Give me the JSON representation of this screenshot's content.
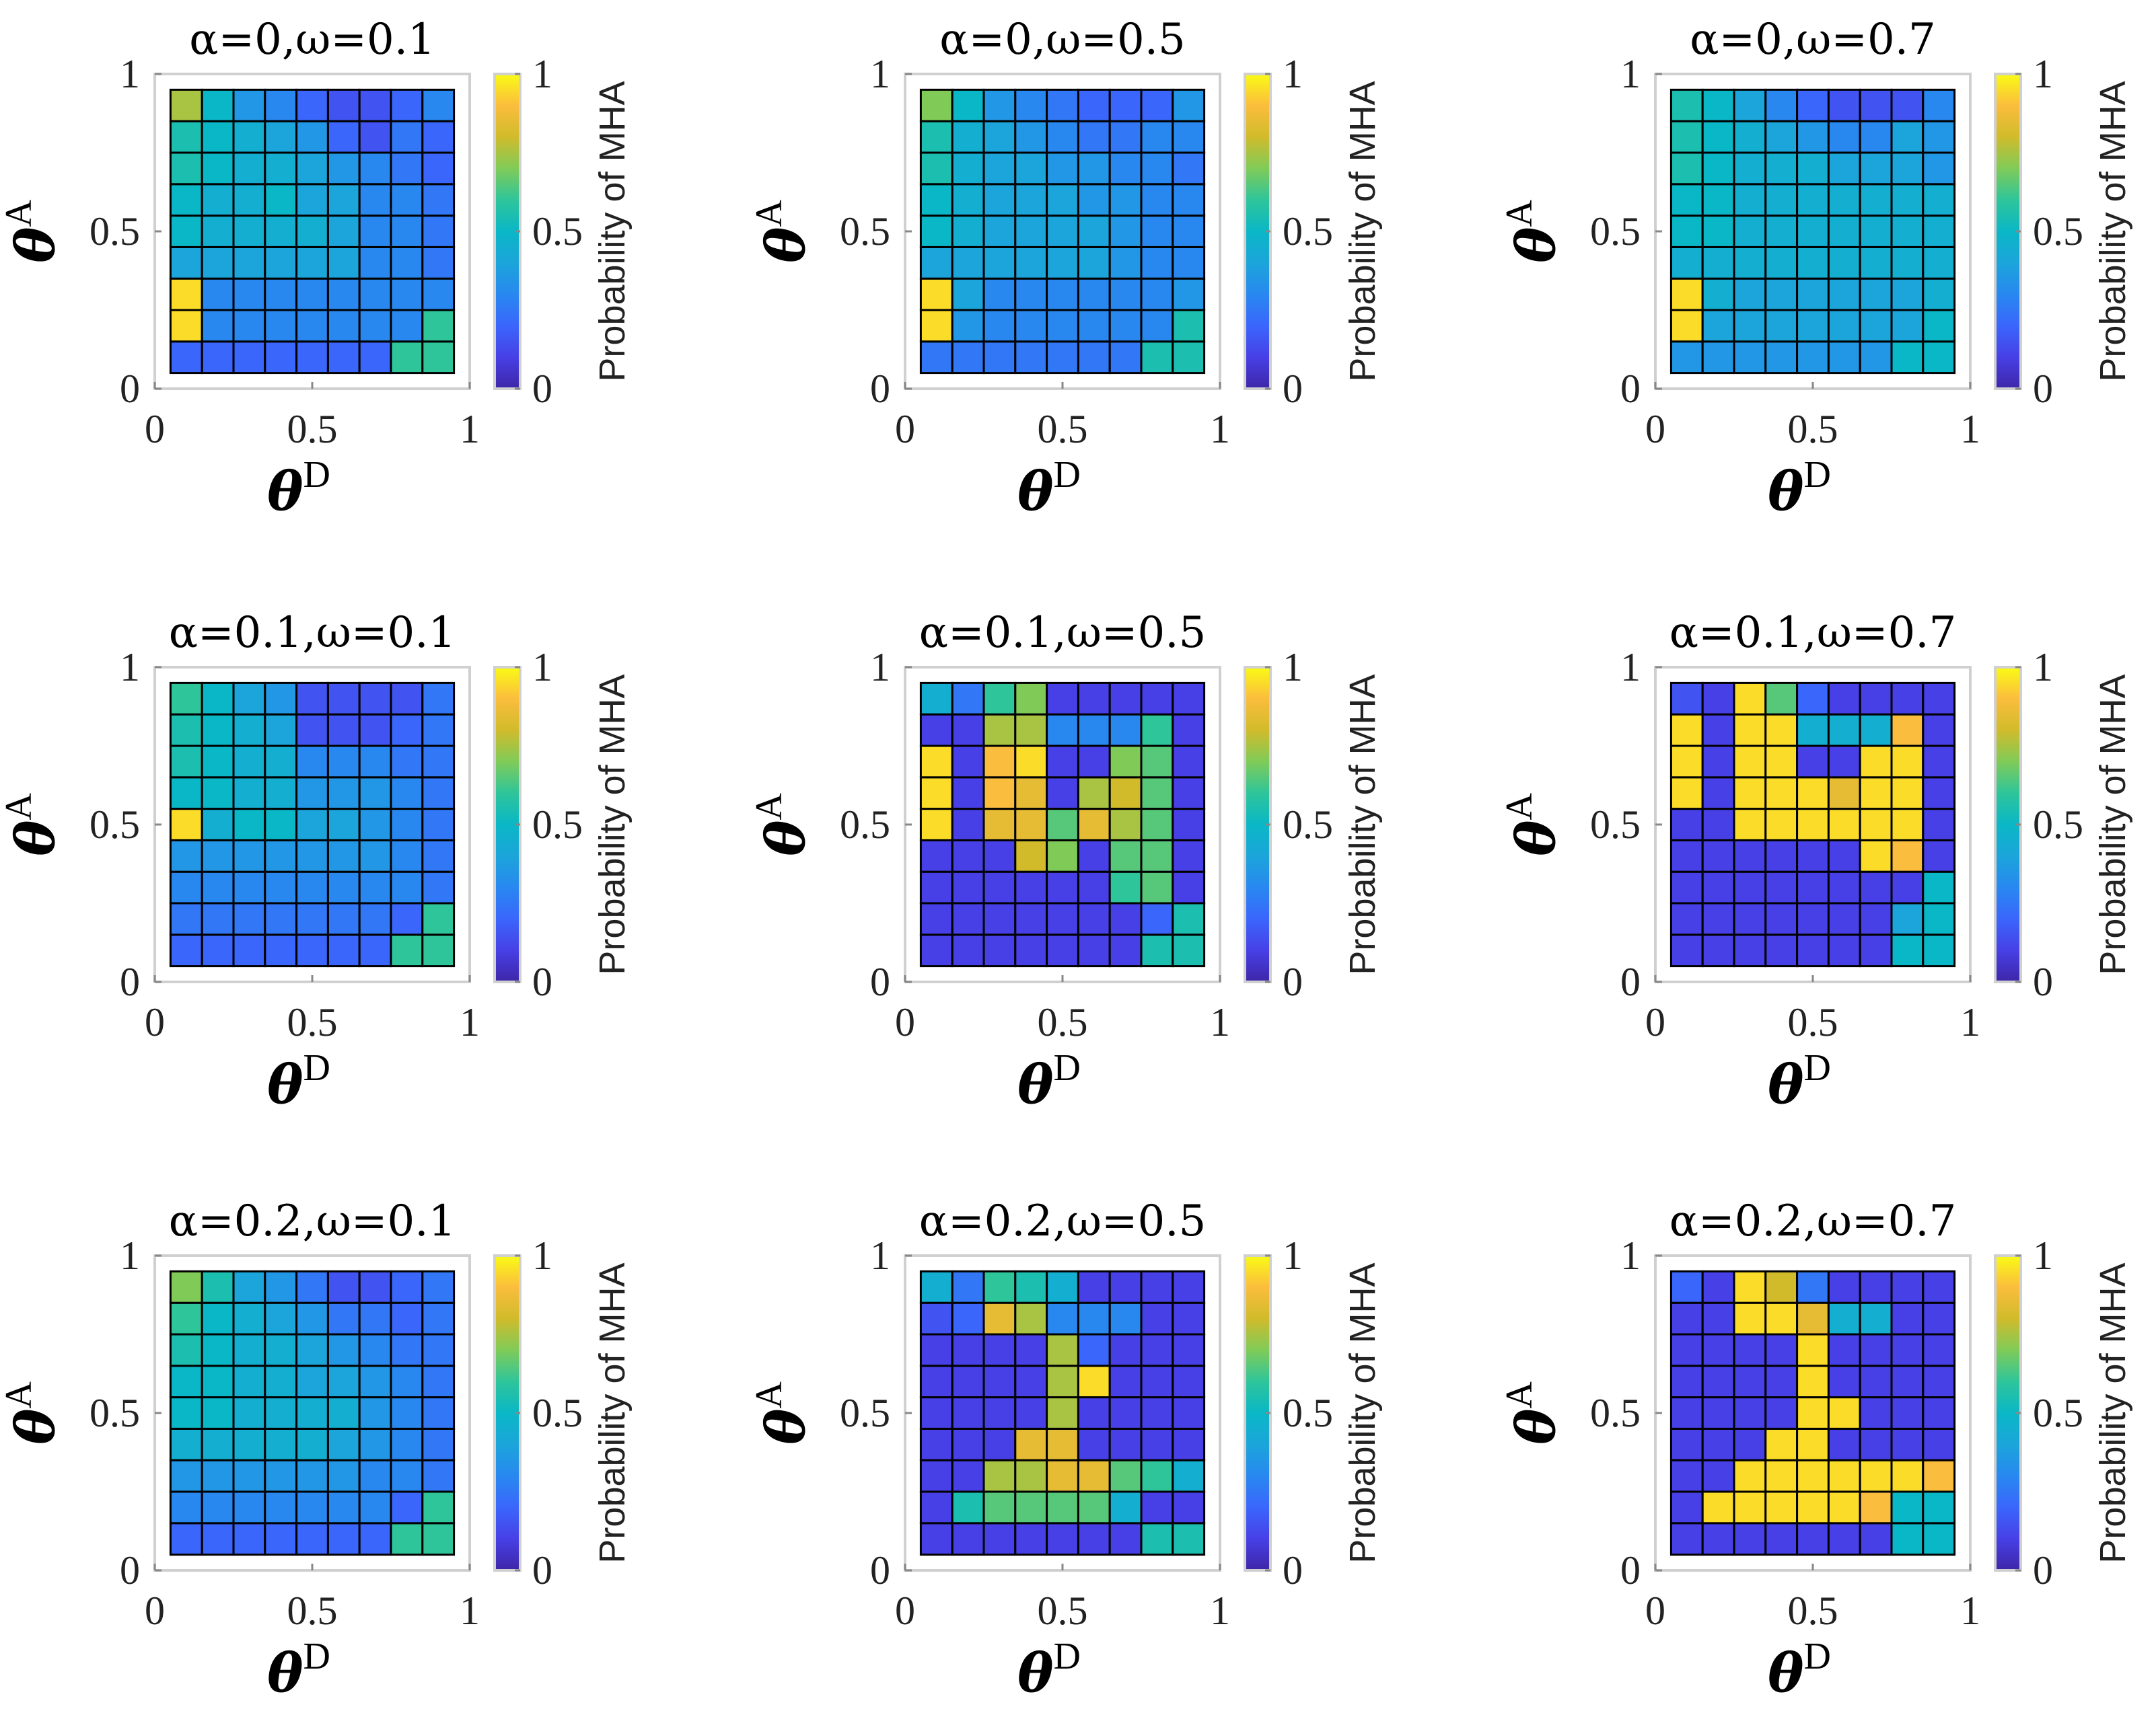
{
  "chart_data": [
    {
      "type": "heatmap",
      "title": "α=0,ω=0.1",
      "xlabel": "θ",
      "xlabel_sup": "D",
      "ylabel": "θ",
      "ylabel_sup": "A",
      "xlim": [
        0,
        1
      ],
      "ylim": [
        0,
        1
      ],
      "x_ticks": [
        "0",
        "0.5",
        "1"
      ],
      "y_ticks": [
        "0",
        "0.5",
        "1"
      ],
      "colorbar": {
        "label": "Probability of MHA",
        "ticks": [
          "0",
          "0.5",
          "1"
        ],
        "range": [
          0,
          1
        ]
      },
      "grid_start": 0.05,
      "grid_step": 0.1,
      "grid_bottom_to_top": [
        [
          0.2,
          0.2,
          0.2,
          0.2,
          0.2,
          0.2,
          0.2,
          0.6,
          0.6
        ],
        [
          0.95,
          0.3,
          0.3,
          0.3,
          0.3,
          0.3,
          0.3,
          0.3,
          0.6
        ],
        [
          0.95,
          0.3,
          0.3,
          0.3,
          0.3,
          0.3,
          0.3,
          0.3,
          0.3
        ],
        [
          0.4,
          0.4,
          0.4,
          0.4,
          0.4,
          0.4,
          0.3,
          0.3,
          0.25
        ],
        [
          0.5,
          0.45,
          0.45,
          0.45,
          0.45,
          0.4,
          0.3,
          0.3,
          0.25
        ],
        [
          0.5,
          0.45,
          0.45,
          0.5,
          0.4,
          0.4,
          0.3,
          0.3,
          0.25
        ],
        [
          0.55,
          0.5,
          0.45,
          0.45,
          0.4,
          0.35,
          0.3,
          0.25,
          0.2
        ],
        [
          0.55,
          0.5,
          0.45,
          0.4,
          0.35,
          0.2,
          0.15,
          0.25,
          0.2
        ],
        [
          0.75,
          0.5,
          0.35,
          0.3,
          0.2,
          0.15,
          0.15,
          0.2,
          0.3
        ]
      ]
    },
    {
      "type": "heatmap",
      "title": "α=0,ω=0.5",
      "xlabel": "θ",
      "xlabel_sup": "D",
      "ylabel": "θ",
      "ylabel_sup": "A",
      "xlim": [
        0,
        1
      ],
      "ylim": [
        0,
        1
      ],
      "x_ticks": [
        "0",
        "0.5",
        "1"
      ],
      "y_ticks": [
        "0",
        "0.5",
        "1"
      ],
      "colorbar": {
        "label": "Probability of MHA",
        "ticks": [
          "0",
          "0.5",
          "1"
        ],
        "range": [
          0,
          1
        ]
      },
      "grid_start": 0.05,
      "grid_step": 0.1,
      "grid_bottom_to_top": [
        [
          0.25,
          0.25,
          0.25,
          0.25,
          0.25,
          0.25,
          0.25,
          0.55,
          0.55
        ],
        [
          0.95,
          0.35,
          0.3,
          0.3,
          0.3,
          0.3,
          0.3,
          0.3,
          0.55
        ],
        [
          0.95,
          0.4,
          0.3,
          0.3,
          0.3,
          0.3,
          0.3,
          0.3,
          0.35
        ],
        [
          0.4,
          0.4,
          0.4,
          0.4,
          0.4,
          0.4,
          0.35,
          0.3,
          0.3
        ],
        [
          0.5,
          0.45,
          0.4,
          0.4,
          0.4,
          0.4,
          0.35,
          0.3,
          0.3
        ],
        [
          0.5,
          0.45,
          0.4,
          0.4,
          0.4,
          0.35,
          0.35,
          0.3,
          0.3
        ],
        [
          0.55,
          0.45,
          0.4,
          0.4,
          0.35,
          0.35,
          0.3,
          0.3,
          0.25
        ],
        [
          0.55,
          0.45,
          0.4,
          0.35,
          0.3,
          0.25,
          0.25,
          0.3,
          0.3
        ],
        [
          0.7,
          0.5,
          0.35,
          0.3,
          0.25,
          0.2,
          0.2,
          0.2,
          0.35
        ]
      ]
    },
    {
      "type": "heatmap",
      "title": "α=0,ω=0.7",
      "xlabel": "θ",
      "xlabel_sup": "D",
      "ylabel": "θ",
      "ylabel_sup": "A",
      "xlim": [
        0,
        1
      ],
      "ylim": [
        0,
        1
      ],
      "x_ticks": [
        "0",
        "0.5",
        "1"
      ],
      "y_ticks": [
        "0",
        "0.5",
        "1"
      ],
      "colorbar": {
        "label": "Probability of MHA",
        "ticks": [
          "0",
          "0.5",
          "1"
        ],
        "range": [
          0,
          1
        ]
      },
      "grid_start": 0.05,
      "grid_step": 0.1,
      "grid_bottom_to_top": [
        [
          0.35,
          0.35,
          0.35,
          0.35,
          0.35,
          0.35,
          0.35,
          0.5,
          0.5
        ],
        [
          0.95,
          0.4,
          0.4,
          0.4,
          0.4,
          0.4,
          0.4,
          0.4,
          0.5
        ],
        [
          0.95,
          0.45,
          0.4,
          0.4,
          0.4,
          0.4,
          0.4,
          0.4,
          0.45
        ],
        [
          0.45,
          0.45,
          0.45,
          0.45,
          0.45,
          0.45,
          0.45,
          0.45,
          0.45
        ],
        [
          0.5,
          0.5,
          0.45,
          0.45,
          0.45,
          0.45,
          0.45,
          0.45,
          0.45
        ],
        [
          0.5,
          0.5,
          0.45,
          0.45,
          0.45,
          0.45,
          0.45,
          0.45,
          0.45
        ],
        [
          0.55,
          0.5,
          0.45,
          0.45,
          0.45,
          0.4,
          0.4,
          0.4,
          0.35
        ],
        [
          0.55,
          0.5,
          0.45,
          0.4,
          0.35,
          0.3,
          0.3,
          0.4,
          0.35
        ],
        [
          0.55,
          0.5,
          0.4,
          0.3,
          0.2,
          0.15,
          0.15,
          0.15,
          0.3
        ]
      ]
    },
    {
      "type": "heatmap",
      "title": "α=0.1,ω=0.1",
      "xlabel": "θ",
      "xlabel_sup": "D",
      "ylabel": "θ",
      "ylabel_sup": "A",
      "xlim": [
        0,
        1
      ],
      "ylim": [
        0,
        1
      ],
      "x_ticks": [
        "0",
        "0.5",
        "1"
      ],
      "y_ticks": [
        "0",
        "0.5",
        "1"
      ],
      "colorbar": {
        "label": "Probability of MHA",
        "ticks": [
          "0",
          "0.5",
          "1"
        ],
        "range": [
          0,
          1
        ]
      },
      "grid_start": 0.05,
      "grid_step": 0.1,
      "grid_bottom_to_top": [
        [
          0.2,
          0.2,
          0.2,
          0.2,
          0.2,
          0.2,
          0.2,
          0.6,
          0.6
        ],
        [
          0.25,
          0.25,
          0.25,
          0.25,
          0.25,
          0.25,
          0.25,
          0.2,
          0.6
        ],
        [
          0.3,
          0.3,
          0.3,
          0.3,
          0.3,
          0.3,
          0.3,
          0.3,
          0.25
        ],
        [
          0.35,
          0.35,
          0.35,
          0.35,
          0.35,
          0.35,
          0.35,
          0.3,
          0.25
        ],
        [
          0.95,
          0.45,
          0.5,
          0.5,
          0.4,
          0.4,
          0.35,
          0.3,
          0.25
        ],
        [
          0.5,
          0.5,
          0.45,
          0.45,
          0.35,
          0.35,
          0.35,
          0.3,
          0.25
        ],
        [
          0.55,
          0.5,
          0.45,
          0.45,
          0.3,
          0.3,
          0.3,
          0.25,
          0.25
        ],
        [
          0.55,
          0.5,
          0.45,
          0.4,
          0.15,
          0.15,
          0.15,
          0.2,
          0.25
        ],
        [
          0.6,
          0.5,
          0.4,
          0.35,
          0.15,
          0.15,
          0.15,
          0.15,
          0.25
        ]
      ]
    },
    {
      "type": "heatmap",
      "title": "α=0.1,ω=0.5",
      "xlabel": "θ",
      "xlabel_sup": "D",
      "ylabel": "θ",
      "ylabel_sup": "A",
      "xlim": [
        0,
        1
      ],
      "ylim": [
        0,
        1
      ],
      "x_ticks": [
        "0",
        "0.5",
        "1"
      ],
      "y_ticks": [
        "0",
        "0.5",
        "1"
      ],
      "colorbar": {
        "label": "Probability of MHA",
        "ticks": [
          "0",
          "0.5",
          "1"
        ],
        "range": [
          0,
          1
        ]
      },
      "grid_start": 0.05,
      "grid_step": 0.1,
      "grid_bottom_to_top": [
        [
          0.1,
          0.1,
          0.1,
          0.1,
          0.1,
          0.1,
          0.1,
          0.55,
          0.55
        ],
        [
          0.1,
          0.1,
          0.1,
          0.1,
          0.1,
          0.1,
          0.1,
          0.2,
          0.55
        ],
        [
          0.1,
          0.1,
          0.1,
          0.1,
          0.1,
          0.1,
          0.6,
          0.65,
          0.1
        ],
        [
          0.1,
          0.1,
          0.1,
          0.8,
          0.7,
          0.1,
          0.65,
          0.65,
          0.1
        ],
        [
          0.95,
          0.1,
          0.85,
          0.85,
          0.65,
          0.85,
          0.75,
          0.65,
          0.1
        ],
        [
          0.95,
          0.1,
          0.9,
          0.85,
          0.1,
          0.75,
          0.8,
          0.65,
          0.1
        ],
        [
          0.95,
          0.1,
          0.9,
          0.95,
          0.1,
          0.1,
          0.7,
          0.65,
          0.1
        ],
        [
          0.1,
          0.1,
          0.75,
          0.75,
          0.3,
          0.3,
          0.3,
          0.6,
          0.1
        ],
        [
          0.45,
          0.25,
          0.6,
          0.7,
          0.1,
          0.1,
          0.1,
          0.1,
          0.1
        ]
      ]
    },
    {
      "type": "heatmap",
      "title": "α=0.1,ω=0.7",
      "xlabel": "θ",
      "xlabel_sup": "D",
      "ylabel": "θ",
      "ylabel_sup": "A",
      "xlim": [
        0,
        1
      ],
      "ylim": [
        0,
        1
      ],
      "x_ticks": [
        "0",
        "0.5",
        "1"
      ],
      "y_ticks": [
        "0",
        "0.5",
        "1"
      ],
      "colorbar": {
        "label": "Probability of MHA",
        "ticks": [
          "0",
          "0.5",
          "1"
        ],
        "range": [
          0,
          1
        ]
      },
      "grid_start": 0.05,
      "grid_step": 0.1,
      "grid_bottom_to_top": [
        [
          0.1,
          0.1,
          0.1,
          0.1,
          0.1,
          0.1,
          0.1,
          0.5,
          0.5
        ],
        [
          0.1,
          0.1,
          0.1,
          0.1,
          0.1,
          0.1,
          0.1,
          0.4,
          0.5
        ],
        [
          0.1,
          0.1,
          0.1,
          0.1,
          0.1,
          0.1,
          0.1,
          0.1,
          0.5
        ],
        [
          0.1,
          0.1,
          0.1,
          0.1,
          0.1,
          0.1,
          0.95,
          0.9,
          0.1
        ],
        [
          0.1,
          0.1,
          0.95,
          0.95,
          0.95,
          0.95,
          0.95,
          0.95,
          0.1
        ],
        [
          0.95,
          0.1,
          0.95,
          0.95,
          0.95,
          0.85,
          0.95,
          0.95,
          0.1
        ],
        [
          0.95,
          0.1,
          0.95,
          0.95,
          0.1,
          0.1,
          0.95,
          0.95,
          0.1
        ],
        [
          0.95,
          0.1,
          0.95,
          0.95,
          0.45,
          0.45,
          0.45,
          0.9,
          0.1
        ],
        [
          0.15,
          0.1,
          0.95,
          0.65,
          0.2,
          0.1,
          0.1,
          0.1,
          0.1
        ]
      ]
    },
    {
      "type": "heatmap",
      "title": "α=0.2,ω=0.1",
      "xlabel": "θ",
      "xlabel_sup": "D",
      "ylabel": "θ",
      "ylabel_sup": "A",
      "xlim": [
        0,
        1
      ],
      "ylim": [
        0,
        1
      ],
      "x_ticks": [
        "0",
        "0.5",
        "1"
      ],
      "y_ticks": [
        "0",
        "0.5",
        "1"
      ],
      "colorbar": {
        "label": "Probability of MHA",
        "ticks": [
          "0",
          "0.5",
          "1"
        ],
        "range": [
          0,
          1
        ]
      },
      "grid_start": 0.05,
      "grid_step": 0.1,
      "grid_bottom_to_top": [
        [
          0.2,
          0.2,
          0.2,
          0.2,
          0.2,
          0.2,
          0.2,
          0.6,
          0.6
        ],
        [
          0.3,
          0.3,
          0.3,
          0.3,
          0.3,
          0.3,
          0.3,
          0.2,
          0.6
        ],
        [
          0.35,
          0.35,
          0.35,
          0.35,
          0.35,
          0.35,
          0.3,
          0.3,
          0.25
        ],
        [
          0.45,
          0.45,
          0.45,
          0.45,
          0.45,
          0.4,
          0.35,
          0.3,
          0.25
        ],
        [
          0.5,
          0.5,
          0.45,
          0.45,
          0.45,
          0.45,
          0.35,
          0.3,
          0.25
        ],
        [
          0.5,
          0.5,
          0.45,
          0.45,
          0.4,
          0.4,
          0.35,
          0.3,
          0.25
        ],
        [
          0.55,
          0.5,
          0.45,
          0.45,
          0.4,
          0.35,
          0.3,
          0.25,
          0.25
        ],
        [
          0.6,
          0.5,
          0.45,
          0.4,
          0.35,
          0.25,
          0.25,
          0.2,
          0.25
        ],
        [
          0.7,
          0.55,
          0.4,
          0.35,
          0.25,
          0.15,
          0.15,
          0.2,
          0.25
        ]
      ]
    },
    {
      "type": "heatmap",
      "title": "α=0.2,ω=0.5",
      "xlabel": "θ",
      "xlabel_sup": "D",
      "ylabel": "θ",
      "ylabel_sup": "A",
      "xlim": [
        0,
        1
      ],
      "ylim": [
        0,
        1
      ],
      "x_ticks": [
        "0",
        "0.5",
        "1"
      ],
      "y_ticks": [
        "0",
        "0.5",
        "1"
      ],
      "colorbar": {
        "label": "Probability of MHA",
        "ticks": [
          "0",
          "0.5",
          "1"
        ],
        "range": [
          0,
          1
        ]
      },
      "grid_start": 0.05,
      "grid_step": 0.1,
      "grid_bottom_to_top": [
        [
          0.1,
          0.1,
          0.1,
          0.1,
          0.1,
          0.1,
          0.1,
          0.55,
          0.55
        ],
        [
          0.1,
          0.55,
          0.65,
          0.65,
          0.65,
          0.65,
          0.45,
          0.1,
          0.1
        ],
        [
          0.1,
          0.1,
          0.75,
          0.75,
          0.85,
          0.85,
          0.65,
          0.6,
          0.45
        ],
        [
          0.1,
          0.1,
          0.1,
          0.85,
          0.85,
          0.1,
          0.1,
          0.1,
          0.1
        ],
        [
          0.1,
          0.1,
          0.1,
          0.1,
          0.75,
          0.1,
          0.1,
          0.1,
          0.1
        ],
        [
          0.1,
          0.1,
          0.1,
          0.1,
          0.75,
          0.95,
          0.1,
          0.1,
          0.1
        ],
        [
          0.1,
          0.1,
          0.1,
          0.1,
          0.75,
          0.2,
          0.1,
          0.1,
          0.1
        ],
        [
          0.15,
          0.2,
          0.85,
          0.75,
          0.3,
          0.3,
          0.3,
          0.1,
          0.1
        ],
        [
          0.45,
          0.25,
          0.6,
          0.55,
          0.45,
          0.1,
          0.1,
          0.1,
          0.1
        ]
      ]
    },
    {
      "type": "heatmap",
      "title": "α=0.2,ω=0.7",
      "xlabel": "θ",
      "xlabel_sup": "D",
      "ylabel": "θ",
      "ylabel_sup": "A",
      "xlim": [
        0,
        1
      ],
      "ylim": [
        0,
        1
      ],
      "x_ticks": [
        "0",
        "0.5",
        "1"
      ],
      "y_ticks": [
        "0",
        "0.5",
        "1"
      ],
      "colorbar": {
        "label": "Probability of MHA",
        "ticks": [
          "0",
          "0.5",
          "1"
        ],
        "range": [
          0,
          1
        ]
      },
      "grid_start": 0.05,
      "grid_step": 0.1,
      "grid_bottom_to_top": [
        [
          0.1,
          0.1,
          0.1,
          0.1,
          0.1,
          0.1,
          0.1,
          0.5,
          0.5
        ],
        [
          0.1,
          0.95,
          0.95,
          0.95,
          0.95,
          0.95,
          0.9,
          0.5,
          0.5
        ],
        [
          0.1,
          0.1,
          0.95,
          0.95,
          0.95,
          0.95,
          0.95,
          0.95,
          0.9
        ],
        [
          0.1,
          0.1,
          0.1,
          0.95,
          0.95,
          0.1,
          0.1,
          0.1,
          0.1
        ],
        [
          0.1,
          0.1,
          0.1,
          0.1,
          0.95,
          0.95,
          0.1,
          0.1,
          0.1
        ],
        [
          0.1,
          0.1,
          0.1,
          0.1,
          0.95,
          0.1,
          0.1,
          0.1,
          0.1
        ],
        [
          0.1,
          0.1,
          0.1,
          0.1,
          0.95,
          0.1,
          0.1,
          0.1,
          0.1
        ],
        [
          0.1,
          0.1,
          0.95,
          0.95,
          0.85,
          0.45,
          0.45,
          0.1,
          0.1
        ],
        [
          0.2,
          0.1,
          0.95,
          0.8,
          0.25,
          0.1,
          0.1,
          0.1,
          0.1
        ]
      ]
    }
  ]
}
